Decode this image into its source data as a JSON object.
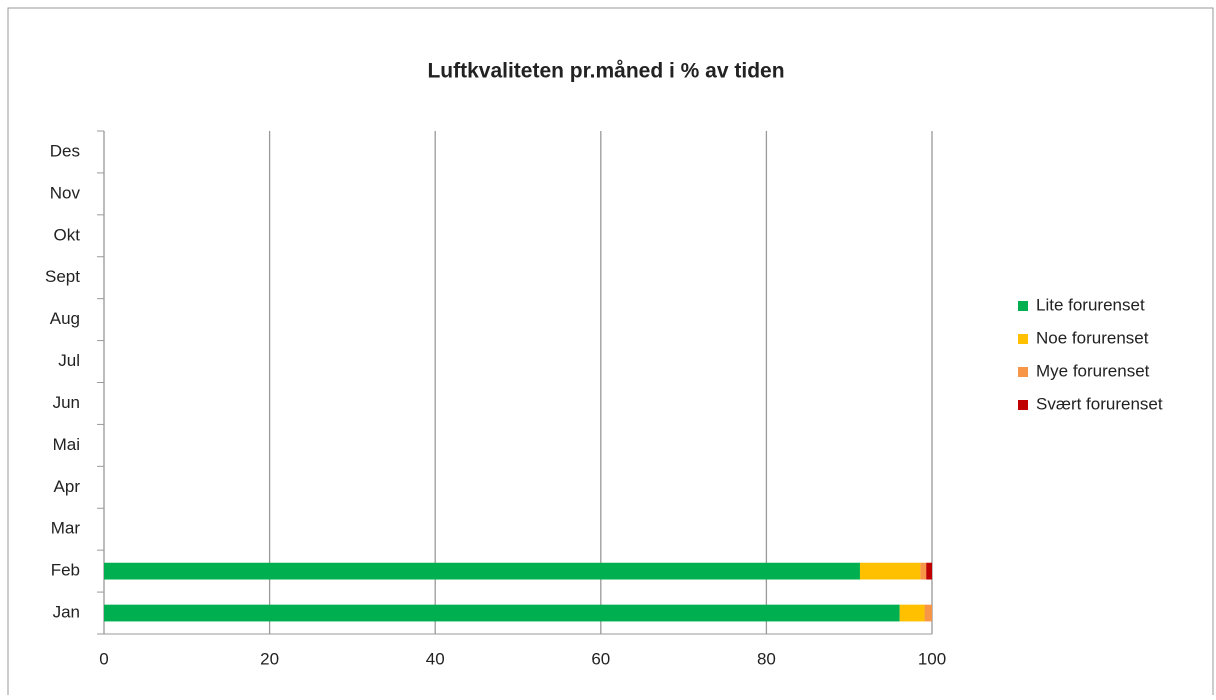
{
  "chart_data": {
    "type": "stacked-barh",
    "title": "Luftkvaliteten pr.måned i % av tiden",
    "categories": [
      "Jan",
      "Feb",
      "Mar",
      "Apr",
      "Mai",
      "Jun",
      "Jul",
      "Aug",
      "Sept",
      "Okt",
      "Nov",
      "Des"
    ],
    "series": [
      {
        "name": "Lite forurenset",
        "color": "#00b050",
        "values": [
          96.1,
          91.3,
          null,
          null,
          null,
          null,
          null,
          null,
          null,
          null,
          null,
          null
        ]
      },
      {
        "name": "Noe forurenset",
        "color": "#ffc000",
        "values": [
          3.0,
          7.3,
          null,
          null,
          null,
          null,
          null,
          null,
          null,
          null,
          null,
          null
        ]
      },
      {
        "name": "Mye forurenset",
        "color": "#f79646",
        "values": [
          0.9,
          0.7,
          null,
          null,
          null,
          null,
          null,
          null,
          null,
          null,
          null,
          null
        ]
      },
      {
        "name": "Svært forurenset",
        "color": "#c00000",
        "values": [
          0,
          0.7,
          null,
          null,
          null,
          null,
          null,
          null,
          null,
          null,
          null,
          null
        ]
      }
    ],
    "xlim": [
      0,
      100
    ],
    "xticks": [
      0,
      20,
      40,
      60,
      80,
      100
    ],
    "grid": true,
    "legend": "right"
  }
}
